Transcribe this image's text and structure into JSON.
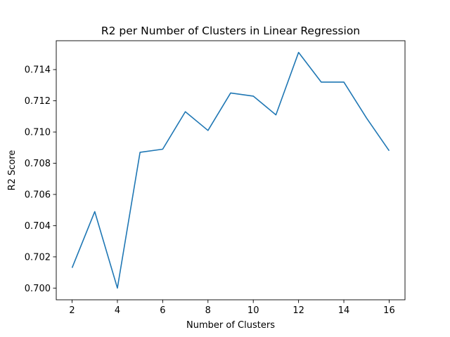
{
  "chart_data": {
    "type": "line",
    "title": "R2 per Number of Clusters in Linear Regression",
    "xlabel": "Number of Clusters",
    "ylabel": "R2 Score",
    "x": [
      2,
      3,
      4,
      5,
      6,
      7,
      8,
      9,
      10,
      11,
      12,
      13,
      14,
      15,
      16
    ],
    "series": [
      {
        "values": [
          0.7013,
          0.7049,
          0.7,
          0.7087,
          0.7089,
          0.7113,
          0.7101,
          0.7125,
          0.7123,
          0.7111,
          0.7151,
          0.7132,
          0.7132,
          0.7109,
          0.7088
        ]
      }
    ],
    "xlim": [
      1.3,
      16.7
    ],
    "ylim": [
      0.69925,
      0.71585
    ],
    "xticks": [
      2,
      4,
      6,
      8,
      10,
      12,
      14,
      16
    ],
    "yticks": [
      0.7,
      0.702,
      0.704,
      0.706,
      0.708,
      0.71,
      0.712,
      0.714
    ],
    "ytick_labels": [
      "0.700",
      "0.702",
      "0.704",
      "0.706",
      "0.708",
      "0.710",
      "0.712",
      "0.714"
    ],
    "grid": false,
    "colors": {
      "line": "#1f77b4",
      "axes": "#000000",
      "background": "#ffffff"
    }
  }
}
